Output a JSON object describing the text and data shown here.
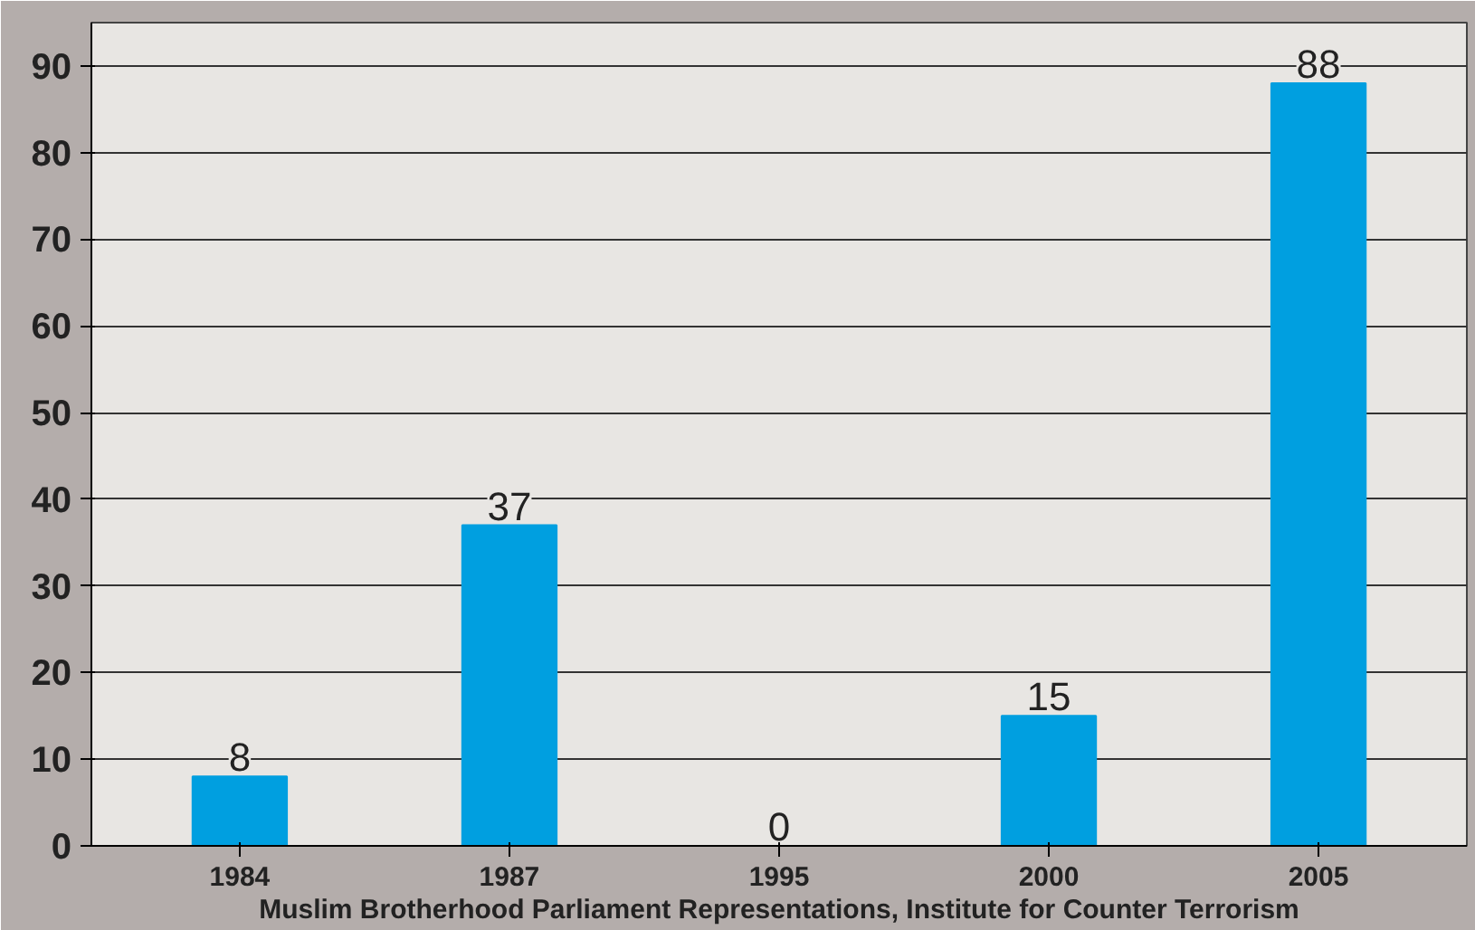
{
  "chart_data": {
    "type": "bar",
    "categories": [
      "1984",
      "1987",
      "1995",
      "2000",
      "2005"
    ],
    "values": [
      8,
      37,
      0,
      15,
      88
    ],
    "color": "#009fe0",
    "xlabel": "Muslim Brotherhood Parliament Representations, Institute for Counter Terrorism",
    "ylim": [
      0,
      95
    ],
    "yticks": [
      0,
      10,
      20,
      30,
      40,
      50,
      60,
      70,
      80,
      90
    ],
    "grid": "y",
    "data_labels": true
  }
}
